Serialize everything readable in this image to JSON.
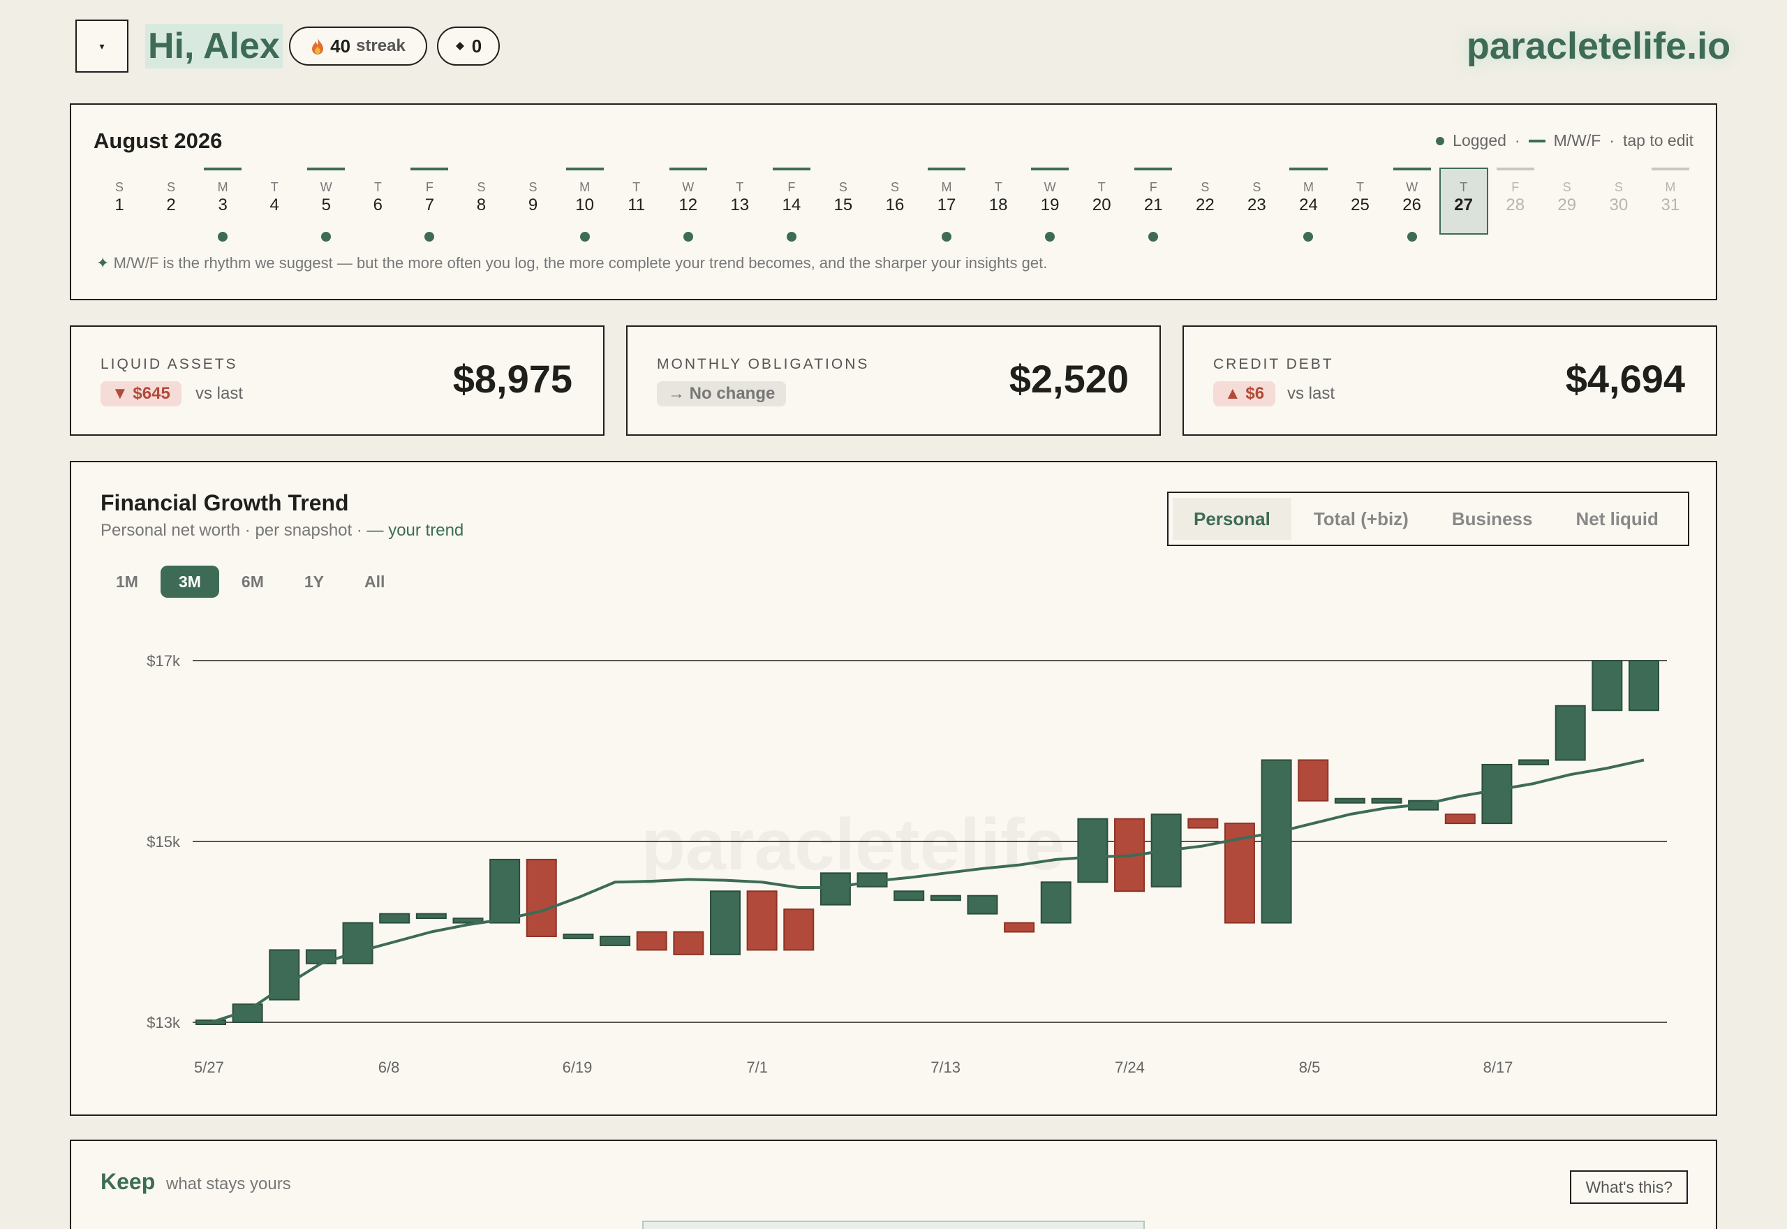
{
  "header": {
    "menu_icon": "▾",
    "greeting": "Hi, Alex",
    "streak_count": "40",
    "streak_label": "streak",
    "gems_count": "0",
    "brand": "paracletelife.io"
  },
  "calendar": {
    "title": "August 2026",
    "legend_logged": "Logged",
    "legend_mwf": "M/W/F",
    "legend_sep": "·",
    "legend_edit": "tap to edit",
    "note_icon": "✦",
    "note": "M/W/F is the rhythm we suggest — but the more often you log, the more complete your trend becomes, and the sharper your insights get.",
    "today": 27,
    "days": [
      {
        "dow": "S",
        "num": "1",
        "mwf": false,
        "logged": false
      },
      {
        "dow": "S",
        "num": "2",
        "mwf": false,
        "logged": false
      },
      {
        "dow": "M",
        "num": "3",
        "mwf": true,
        "logged": true
      },
      {
        "dow": "T",
        "num": "4",
        "mwf": false,
        "logged": false
      },
      {
        "dow": "W",
        "num": "5",
        "mwf": true,
        "logged": true
      },
      {
        "dow": "T",
        "num": "6",
        "mwf": false,
        "logged": false
      },
      {
        "dow": "F",
        "num": "7",
        "mwf": true,
        "logged": true
      },
      {
        "dow": "S",
        "num": "8",
        "mwf": false,
        "logged": false
      },
      {
        "dow": "S",
        "num": "9",
        "mwf": false,
        "logged": false
      },
      {
        "dow": "M",
        "num": "10",
        "mwf": true,
        "logged": true
      },
      {
        "dow": "T",
        "num": "11",
        "mwf": false,
        "logged": false
      },
      {
        "dow": "W",
        "num": "12",
        "mwf": true,
        "logged": true
      },
      {
        "dow": "T",
        "num": "13",
        "mwf": false,
        "logged": false
      },
      {
        "dow": "F",
        "num": "14",
        "mwf": true,
        "logged": true
      },
      {
        "dow": "S",
        "num": "15",
        "mwf": false,
        "logged": false
      },
      {
        "dow": "S",
        "num": "16",
        "mwf": false,
        "logged": false
      },
      {
        "dow": "M",
        "num": "17",
        "mwf": true,
        "logged": true
      },
      {
        "dow": "T",
        "num": "18",
        "mwf": false,
        "logged": false
      },
      {
        "dow": "W",
        "num": "19",
        "mwf": true,
        "logged": true
      },
      {
        "dow": "T",
        "num": "20",
        "mwf": false,
        "logged": false
      },
      {
        "dow": "F",
        "num": "21",
        "mwf": true,
        "logged": true
      },
      {
        "dow": "S",
        "num": "22",
        "mwf": false,
        "logged": false
      },
      {
        "dow": "S",
        "num": "23",
        "mwf": false,
        "logged": false
      },
      {
        "dow": "M",
        "num": "24",
        "mwf": true,
        "logged": true
      },
      {
        "dow": "T",
        "num": "25",
        "mwf": false,
        "logged": false
      },
      {
        "dow": "W",
        "num": "26",
        "mwf": true,
        "logged": true
      },
      {
        "dow": "T",
        "num": "27",
        "mwf": false,
        "logged": false
      },
      {
        "dow": "F",
        "num": "28",
        "mwf": true,
        "logged": false
      },
      {
        "dow": "S",
        "num": "29",
        "mwf": false,
        "logged": false
      },
      {
        "dow": "S",
        "num": "30",
        "mwf": false,
        "logged": false
      },
      {
        "dow": "M",
        "num": "31",
        "mwf": true,
        "logged": false
      }
    ]
  },
  "stats": {
    "liquid": {
      "label": "LIQUID ASSETS",
      "chip": "▼ $645",
      "vs": "vs last",
      "value": "$8,975"
    },
    "monthly": {
      "label": "MONTHLY OBLIGATIONS",
      "chip": "→ No change",
      "value": "$2,520"
    },
    "credit": {
      "label": "CREDIT DEBT",
      "chip": "▲ $6",
      "vs": "vs last",
      "value": "$4,694"
    }
  },
  "chart_panel": {
    "title": "Financial Growth Trend",
    "subtitle": "Personal net worth · per snapshot ·",
    "subtitle_trend": "— your trend",
    "tabs": [
      "Personal",
      "Total (+biz)",
      "Business",
      "Net liquid"
    ],
    "active_tab": 0,
    "ranges": [
      "1M",
      "3M",
      "6M",
      "1Y",
      "All"
    ],
    "active_range": 1,
    "watermark": "paracletelife"
  },
  "colors": {
    "accent": "#3d6b56",
    "up": "#3d6b56",
    "down": "#b14a3a",
    "background": "#f1eee5",
    "card": "#faf8f1"
  },
  "chart_data": {
    "type": "candlestick",
    "ylabel": "",
    "ylim": [
      13000,
      17000
    ],
    "yticks": [
      13000,
      15000,
      17000
    ],
    "ytick_labels": [
      "$13k",
      "$15k",
      "$17k"
    ],
    "xtick_labels": [
      "5/27",
      "6/8",
      "6/19",
      "7/1",
      "7/13",
      "7/24",
      "8/5",
      "8/17"
    ],
    "grid": true,
    "candles": [
      {
        "open": 13000,
        "close": 13000
      },
      {
        "open": 13000,
        "close": 13200
      },
      {
        "open": 13250,
        "close": 13800
      },
      {
        "open": 13650,
        "close": 13800
      },
      {
        "open": 13650,
        "close": 14100
      },
      {
        "open": 14100,
        "close": 14200
      },
      {
        "open": 14150,
        "close": 14200
      },
      {
        "open": 14100,
        "close": 14150
      },
      {
        "open": 14100,
        "close": 14800
      },
      {
        "open": 14800,
        "close": 13950
      },
      {
        "open": 13950,
        "close": 13950
      },
      {
        "open": 13850,
        "close": 13950
      },
      {
        "open": 14000,
        "close": 13800
      },
      {
        "open": 14000,
        "close": 13750
      },
      {
        "open": 13750,
        "close": 14450
      },
      {
        "open": 14450,
        "close": 13800
      },
      {
        "open": 14250,
        "close": 13800
      },
      {
        "open": 14300,
        "close": 14650
      },
      {
        "open": 14500,
        "close": 14650
      },
      {
        "open": 14350,
        "close": 14450
      },
      {
        "open": 14350,
        "close": 14400
      },
      {
        "open": 14200,
        "close": 14400
      },
      {
        "open": 14100,
        "close": 14000
      },
      {
        "open": 14100,
        "close": 14550
      },
      {
        "open": 14550,
        "close": 15250
      },
      {
        "open": 15250,
        "close": 14450
      },
      {
        "open": 14500,
        "close": 15300
      },
      {
        "open": 15250,
        "close": 15150
      },
      {
        "open": 15200,
        "close": 14100
      },
      {
        "open": 14100,
        "close": 15900
      },
      {
        "open": 15900,
        "close": 15450
      },
      {
        "open": 15450,
        "close": 15450
      },
      {
        "open": 15450,
        "close": 15450
      },
      {
        "open": 15350,
        "close": 15450
      },
      {
        "open": 15300,
        "close": 15200
      },
      {
        "open": 15200,
        "close": 15850
      },
      {
        "open": 15850,
        "close": 15900
      },
      {
        "open": 15900,
        "close": 16500
      },
      {
        "open": 16450,
        "close": 17000
      },
      {
        "open": 16450,
        "close": 17000
      }
    ],
    "trend": [
      13000,
      13130,
      13400,
      13650,
      13780,
      13890,
      14000,
      14080,
      14140,
      14230,
      14380,
      14550,
      14560,
      14580,
      14570,
      14550,
      14490,
      14490,
      14560,
      14600,
      14650,
      14700,
      14740,
      14800,
      14830,
      14840,
      14900,
      14950,
      15030,
      15100,
      15200,
      15300,
      15370,
      15410,
      15500,
      15570,
      15640,
      15740,
      15810,
      15900
    ]
  },
  "keep": {
    "title": "Keep",
    "subtitle": "what stays yours",
    "button": "What's this?"
  }
}
